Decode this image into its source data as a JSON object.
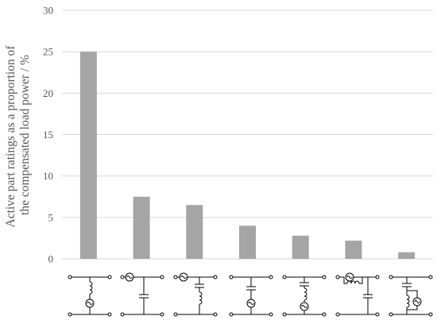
{
  "chart_data": {
    "type": "bar",
    "title": "",
    "xlabel": "",
    "ylabel_lines": [
      "Active part ratings as a proportion of",
      "the compensated load power / %"
    ],
    "ylim": [
      0,
      30
    ],
    "yticks": [
      0,
      5,
      10,
      15,
      20,
      25,
      30
    ],
    "grid": true,
    "categories": [
      "filter-topology-1",
      "filter-topology-2",
      "filter-topology-3",
      "filter-topology-4",
      "filter-topology-5",
      "filter-topology-6",
      "filter-topology-7"
    ],
    "values": [
      25,
      7.5,
      6.5,
      4,
      2.8,
      2.2,
      0.8
    ],
    "bar_color": "#a5a5a5"
  }
}
